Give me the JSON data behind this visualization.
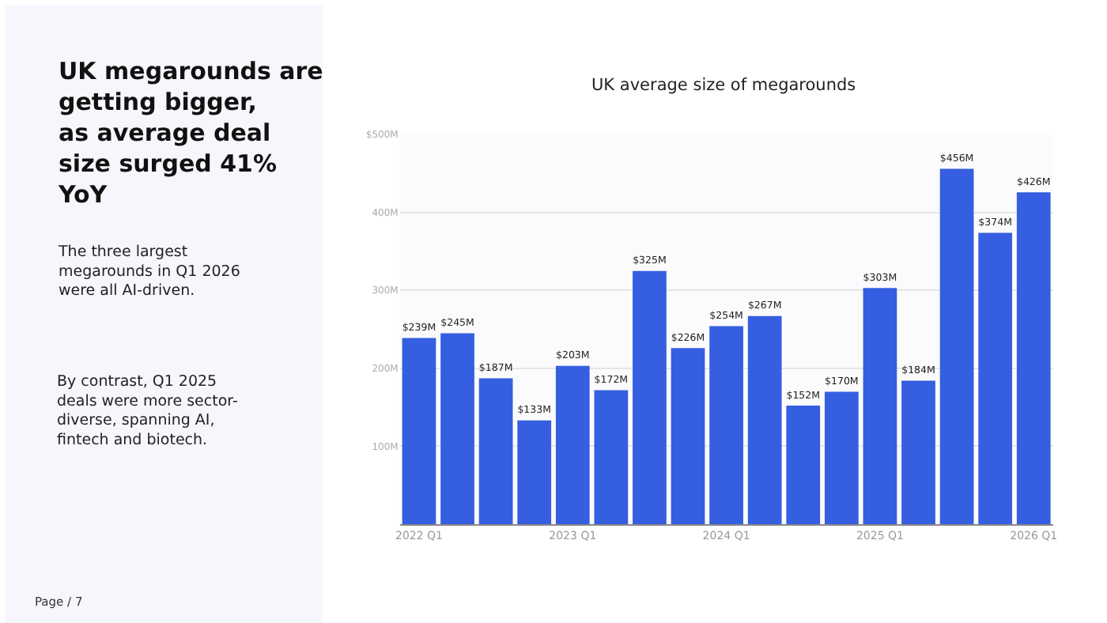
{
  "chart_data": {
    "type": "bar",
    "title": "UK megarounds are getting bigger, as average deal size surged 41% YoY",
    "subtitle": "UK average size of megarounds",
    "annotations": [
      "The three largest megarounds in Q1 2026 were all AI-driven.",
      "By contrast, Q1 2025 deals were more sector-diverse, spanning AI, fintech and biotech.",
      "Page / 7"
    ],
    "categories": [
      "2022 Q1",
      null,
      null,
      null,
      "2023 Q1",
      null,
      null,
      null,
      "2024 Q1",
      null,
      null,
      null,
      "2025 Q1",
      null,
      null,
      null,
      "2026 Q1"
    ],
    "values": [
      239,
      245,
      187,
      133,
      203,
      172,
      325,
      226,
      254,
      267,
      152,
      170,
      303,
      184,
      456,
      374,
      426
    ],
    "value_labels": [
      "$239M",
      "$245M",
      "$187M",
      "$133M",
      "$203M",
      "$172M",
      "$325M",
      "$226M",
      "$254M",
      "$267M",
      "$152M",
      "$170M",
      "$303M",
      "$184M",
      "$456M",
      "$374M",
      "$426M"
    ],
    "color": "#355fe0",
    "ylim": [
      0,
      500
    ],
    "yticks": [
      {
        "value": 100,
        "label": "100M"
      },
      {
        "value": 200,
        "label": "200M"
      },
      {
        "value": 300,
        "label": "300M"
      },
      {
        "value": 400,
        "label": "400M"
      },
      {
        "value": 500,
        "label": "$500M"
      }
    ],
    "grid": "y",
    "legend": false
  }
}
